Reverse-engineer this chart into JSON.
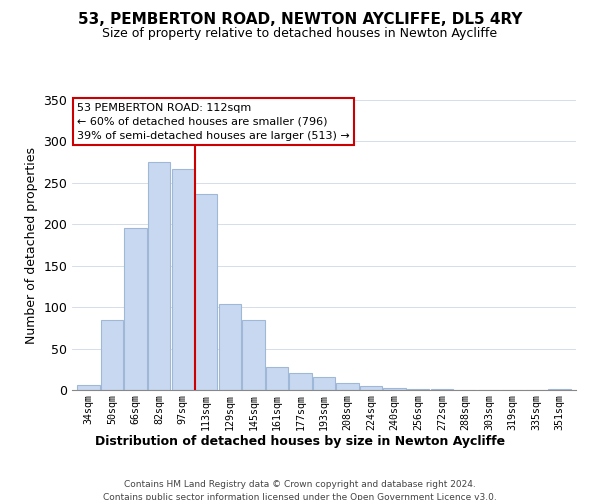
{
  "title": "53, PEMBERTON ROAD, NEWTON AYCLIFFE, DL5 4RY",
  "subtitle": "Size of property relative to detached houses in Newton Aycliffe",
  "xlabel": "Distribution of detached houses by size in Newton Aycliffe",
  "ylabel": "Number of detached properties",
  "bar_labels": [
    "34sqm",
    "50sqm",
    "66sqm",
    "82sqm",
    "97sqm",
    "113sqm",
    "129sqm",
    "145sqm",
    "161sqm",
    "177sqm",
    "193sqm",
    "208sqm",
    "224sqm",
    "240sqm",
    "256sqm",
    "272sqm",
    "288sqm",
    "303sqm",
    "319sqm",
    "335sqm",
    "351sqm"
  ],
  "bar_values": [
    6,
    84,
    196,
    275,
    267,
    236,
    104,
    84,
    28,
    20,
    16,
    8,
    5,
    3,
    1,
    1,
    0,
    0,
    0,
    0,
    1
  ],
  "bar_color": "#c8d8f0",
  "bar_edge_color": "#a0b8d8",
  "highlight_index": 5,
  "highlight_line_color": "#cc0000",
  "ylim": [
    0,
    350
  ],
  "yticks": [
    0,
    50,
    100,
    150,
    200,
    250,
    300,
    350
  ],
  "annotation_title": "53 PEMBERTON ROAD: 112sqm",
  "annotation_line1": "← 60% of detached houses are smaller (796)",
  "annotation_line2": "39% of semi-detached houses are larger (513) →",
  "annotation_box_color": "#ffffff",
  "annotation_box_edge_color": "#cc0000",
  "footer_line1": "Contains HM Land Registry data © Crown copyright and database right 2024.",
  "footer_line2": "Contains public sector information licensed under the Open Government Licence v3.0.",
  "background_color": "#ffffff"
}
